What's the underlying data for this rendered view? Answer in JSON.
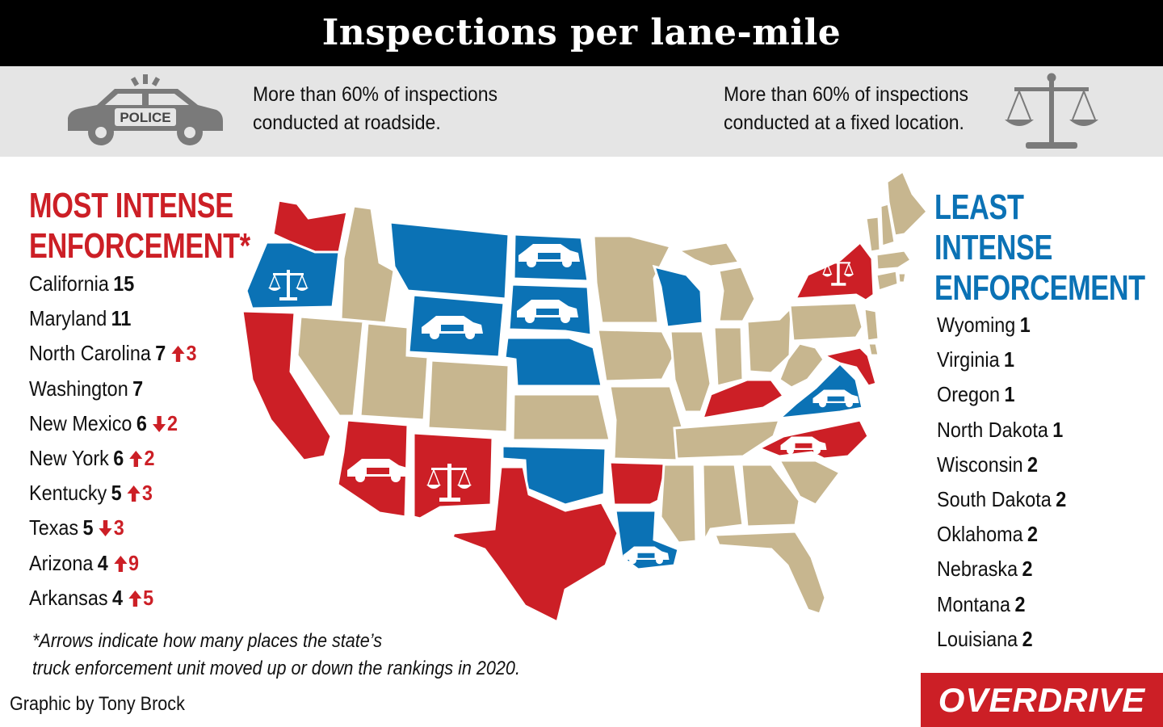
{
  "title": "Inspections per lane-mile",
  "legend": {
    "roadside": {
      "line1": "More than 60% of inspections",
      "line2": "conducted at roadside.",
      "icon": "police-car-icon",
      "badge": "POLICE"
    },
    "fixed": {
      "line1": "More than 60% of inspections",
      "line2": "conducted at a fixed location.",
      "icon": "scales-icon"
    }
  },
  "most": {
    "heading_line1": "MOST INTENSE",
    "heading_line2": "ENFORCEMENT*",
    "items": [
      {
        "state": "California",
        "value": "15",
        "change": "",
        "dir": ""
      },
      {
        "state": "Maryland",
        "value": "11",
        "change": "",
        "dir": ""
      },
      {
        "state": "North Carolina",
        "value": "7",
        "change": "3",
        "dir": "up"
      },
      {
        "state": "Washington",
        "value": "7",
        "change": "",
        "dir": ""
      },
      {
        "state": "New Mexico",
        "value": "6",
        "change": "2",
        "dir": "down"
      },
      {
        "state": "New York",
        "value": "6",
        "change": "2",
        "dir": "up"
      },
      {
        "state": "Kentucky",
        "value": "5",
        "change": "3",
        "dir": "up"
      },
      {
        "state": "Texas",
        "value": "5",
        "change": "3",
        "dir": "down"
      },
      {
        "state": "Arizona",
        "value": "4",
        "change": "9",
        "dir": "up"
      },
      {
        "state": "Arkansas",
        "value": "4",
        "change": "5",
        "dir": "up"
      }
    ]
  },
  "least": {
    "heading_line1": "LEAST",
    "heading_line2": "INTENSE",
    "heading_line3": "ENFORCEMENT",
    "items": [
      {
        "state": "Wyoming",
        "value": "1"
      },
      {
        "state": "Virginia",
        "value": "1"
      },
      {
        "state": "Oregon",
        "value": "1"
      },
      {
        "state": "North Dakota",
        "value": "1"
      },
      {
        "state": "Wisconsin",
        "value": "2"
      },
      {
        "state": "South Dakota",
        "value": "2"
      },
      {
        "state": "Oklahoma",
        "value": "2"
      },
      {
        "state": "Nebraska",
        "value": "2"
      },
      {
        "state": "Montana",
        "value": "2"
      },
      {
        "state": "Louisiana",
        "value": "2"
      }
    ]
  },
  "footnote": {
    "line1": "*Arrows indicate how many places the state’s",
    "line2": "truck enforcement unit moved up or down the rankings in 2020."
  },
  "credit": "Graphic by Tony Brock",
  "logo": "OVERDRIVE",
  "colors": {
    "most": "#cc1f26",
    "least": "#0b72b5",
    "other": "#c7b68f",
    "band": "#e5e5e5"
  }
}
